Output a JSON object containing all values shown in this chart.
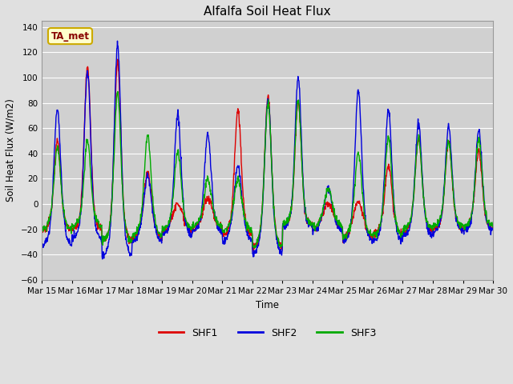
{
  "title": "Alfalfa Soil Heat Flux",
  "ylabel": "Soil Heat Flux (W/m2)",
  "xlabel": "Time",
  "ylim": [
    -60,
    145
  ],
  "yticks": [
    -60,
    -40,
    -20,
    0,
    20,
    40,
    60,
    80,
    100,
    120,
    140
  ],
  "series_colors": {
    "SHF1": "#dd0000",
    "SHF2": "#0000dd",
    "SHF3": "#00aa00"
  },
  "series_linewidth": 1.0,
  "bg_color": "#e0e0e0",
  "plot_bg_color": "#d0d0d0",
  "annotation_text": "TA_met",
  "annotation_bg": "#ffffcc",
  "annotation_border": "#ccaa00",
  "annotation_text_color": "#880000",
  "n_days": 15,
  "start_day": 15,
  "points_per_day": 96,
  "grid_color": "#ffffff",
  "legend_labels": [
    "SHF1",
    "SHF2",
    "SHF3"
  ],
  "shf1_peaks": [
    50,
    108,
    112,
    25,
    0,
    5,
    75,
    85,
    82,
    0,
    2,
    30,
    52,
    50,
    42
  ],
  "shf2_peaks": [
    75,
    105,
    126,
    22,
    70,
    55,
    30,
    83,
    100,
    12,
    90,
    75,
    63,
    62,
    58
  ],
  "shf3_peaks": [
    45,
    50,
    88,
    54,
    42,
    20,
    20,
    80,
    82,
    12,
    40,
    53,
    52,
    50,
    52
  ],
  "shf1_troughs": [
    -22,
    -20,
    -30,
    -28,
    -22,
    -20,
    -25,
    -35,
    -18,
    -20,
    -28,
    -25,
    -22,
    -20,
    -20
  ],
  "shf2_troughs": [
    -33,
    -28,
    -42,
    -30,
    -25,
    -22,
    -30,
    -40,
    -18,
    -22,
    -30,
    -30,
    -25,
    -22,
    -22
  ],
  "shf3_troughs": [
    -20,
    -18,
    -30,
    -25,
    -20,
    -18,
    -22,
    -35,
    -16,
    -18,
    -26,
    -25,
    -20,
    -18,
    -18
  ]
}
